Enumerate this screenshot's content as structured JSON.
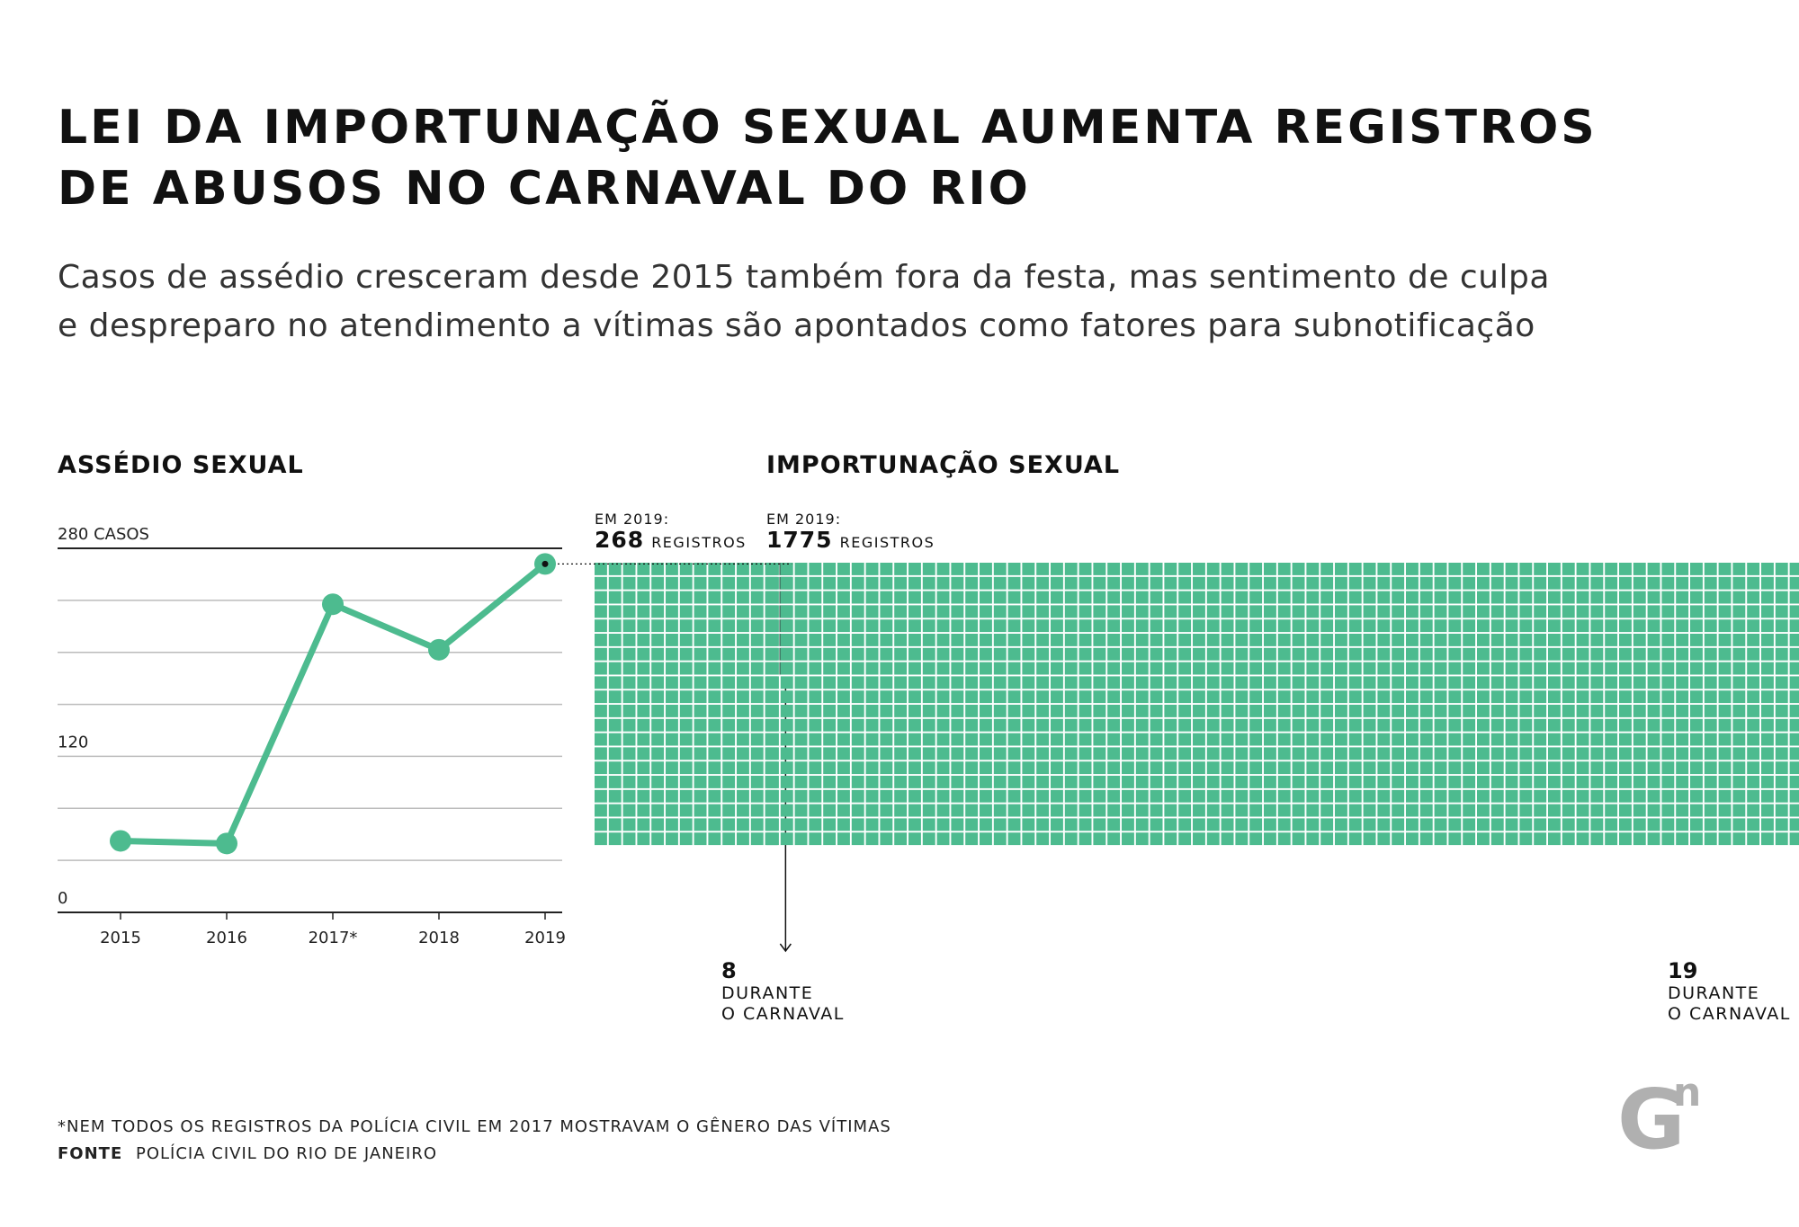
{
  "title_line1": "LEI DA IMPORTUNAÇÃO SEXUAL AUMENTA REGISTROS",
  "title_line2": "DE ABUSOS NO CARNAVAL DO RIO",
  "subtitle_line1": "Casos de assédio cresceram desde 2015 também fora da festa, mas sentimento de culpa",
  "subtitle_line2": "e despreparo no atendimento a vítimas são apontados como fatores para subnotificação",
  "colors": {
    "accent": "#4dbb8f",
    "carnival": "#3f6e5e",
    "grid": "#bbbbbb",
    "logo": "#b0b0b0"
  },
  "chart_data": [
    {
      "type": "line",
      "title": "ASSÉDIO SEXUAL",
      "categories": [
        "2015",
        "2016",
        "2017*",
        "2018",
        "2019"
      ],
      "values": [
        55,
        53,
        237,
        202,
        268
      ],
      "ylim": [
        0,
        280
      ],
      "y_tick_labels": [
        "0",
        "120",
        "280 CASOS"
      ],
      "grid": true
    },
    {
      "type": "waffle",
      "title": "ASSÉDIO SEXUAL",
      "label_year": "EM 2019:",
      "total": 268,
      "total_label": "268",
      "unit": "REGISTROS",
      "carnival": 8,
      "carnival_label": "8",
      "carnival_text_1": "DURANTE",
      "carnival_text_2": "O CARNAVAL"
    },
    {
      "type": "waffle",
      "title": "IMPORTUNAÇÃO SEXUAL",
      "label_year": "EM 2019:",
      "total": 1775,
      "total_label": "1775",
      "unit": "REGISTROS",
      "carnival": 19,
      "carnival_label": "19",
      "carnival_text_1": "DURANTE",
      "carnival_text_2": "O CARNAVAL"
    }
  ],
  "footnote": "*NEM TODOS OS REGISTROS DA POLÍCIA CIVIL EM 2017 MOSTRAVAM O GÊNERO DAS VÍTIMAS",
  "source_label": "FONTE",
  "source_text": "POLÍCIA CIVIL DO RIO DE JANEIRO",
  "logo_text": "G",
  "logo_sup": "n"
}
